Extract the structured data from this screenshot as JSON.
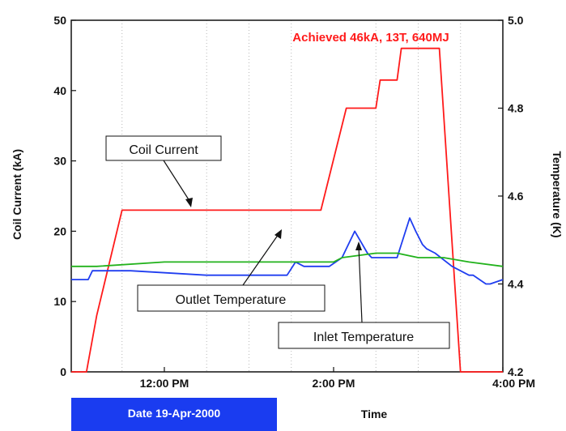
{
  "chart_data": {
    "type": "line",
    "title": "Achieved 46kA, 13T, 640MJ",
    "xlabel": "Time",
    "ylabel": "Coil Current (kA)",
    "y2label": "Temperature (K)",
    "x_ticks": [
      "12:00 PM",
      "2:00 PM",
      "4:00 PM"
    ],
    "x_tick_hours": [
      12,
      14,
      16
    ],
    "xlim_hours": [
      10.9,
      16.0
    ],
    "ylim": [
      0,
      50
    ],
    "y_ticks": [
      0,
      10,
      20,
      30,
      40,
      50
    ],
    "y2lim": [
      4.2,
      5.0
    ],
    "y2_ticks": [
      "4.2",
      "4.4",
      "4.6",
      "4.8",
      "5.0"
    ],
    "date_label": "Date 19-Apr-2000",
    "series": [
      {
        "name": "Coil Current",
        "axis": "left",
        "color": "#ff1a1a",
        "x": [
          10.9,
          11.08,
          11.2,
          11.5,
          11.65,
          13.85,
          14.15,
          14.5,
          14.55,
          14.75,
          14.8,
          15.25,
          15.5,
          16.0
        ],
        "y": [
          0,
          0,
          8,
          23,
          23,
          23,
          37.5,
          37.5,
          41.5,
          41.5,
          46,
          46,
          0,
          0
        ]
      },
      {
        "name": "Outlet Temperature",
        "axis": "right",
        "color": "#1f3df0",
        "x": [
          10.9,
          11.1,
          11.15,
          11.6,
          12.5,
          13.2,
          13.45,
          13.55,
          13.65,
          13.72,
          13.77,
          13.82,
          13.95,
          14.1,
          14.25,
          14.4,
          14.45,
          14.55,
          14.75,
          14.85,
          14.9,
          14.97,
          15.05,
          15.1,
          15.2,
          15.4,
          15.6,
          15.65,
          15.8,
          15.85,
          16.0
        ],
        "y": [
          4.41,
          4.41,
          4.43,
          4.43,
          4.42,
          4.42,
          4.42,
          4.45,
          4.44,
          4.44,
          4.44,
          4.44,
          4.44,
          4.46,
          4.52,
          4.47,
          4.46,
          4.46,
          4.46,
          4.52,
          4.55,
          4.52,
          4.49,
          4.48,
          4.47,
          4.44,
          4.42,
          4.42,
          4.4,
          4.4,
          4.41
        ]
      },
      {
        "name": "Inlet Temperature",
        "axis": "right",
        "color": "#22b21c",
        "x": [
          10.9,
          11.2,
          12.0,
          13.0,
          13.6,
          14.0,
          14.1,
          14.5,
          14.75,
          15.0,
          15.3,
          15.6,
          16.0
        ],
        "y": [
          4.44,
          4.44,
          4.45,
          4.45,
          4.45,
          4.45,
          4.46,
          4.47,
          4.47,
          4.46,
          4.46,
          4.45,
          4.44
        ]
      }
    ],
    "annotations": [
      {
        "text": "Coil Current",
        "target": "Coil Current"
      },
      {
        "text": "Outlet Temperature",
        "target": "Outlet Temperature"
      },
      {
        "text": "Inlet Temperature",
        "target": "Inlet Temperature"
      }
    ],
    "grid": "vertical dotted",
    "legend": "none"
  }
}
